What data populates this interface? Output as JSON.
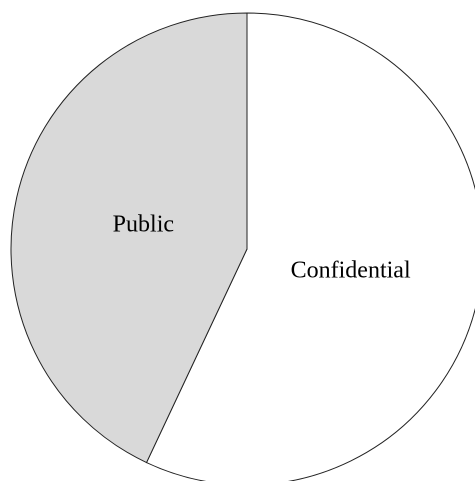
{
  "chart_data": {
    "type": "pie",
    "slices": [
      {
        "label": "Confidential",
        "value": 57,
        "color": "#ffffff"
      },
      {
        "label": "Public",
        "value": 43,
        "color": "#d9d9d9"
      }
    ],
    "start": "top",
    "direction": "clockwise",
    "legend": "none"
  }
}
